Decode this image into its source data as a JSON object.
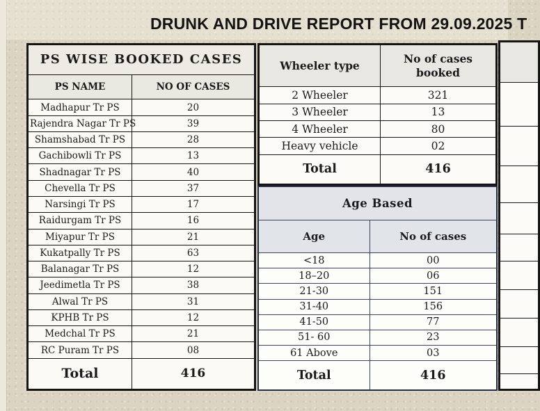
{
  "title": "DRUNK AND DRIVE REPORT FROM 29.09.2025 T",
  "ps_table": {
    "title": "PS WISE BOOKED CASES",
    "columns": [
      "PS NAME",
      "NO OF CASES"
    ],
    "rows": [
      [
        "Madhapur Tr PS",
        "20"
      ],
      [
        "Rajendra Nagar Tr PS",
        "39"
      ],
      [
        "Shamshabad Tr PS",
        "28"
      ],
      [
        "Gachibowli Tr PS",
        "13"
      ],
      [
        "Shadnagar Tr PS",
        "40"
      ],
      [
        "Chevella Tr PS",
        "37"
      ],
      [
        "Narsingi Tr PS",
        "17"
      ],
      [
        "Raidurgam Tr PS",
        "16"
      ],
      [
        "Miyapur Tr PS",
        "21"
      ],
      [
        "Kukatpally Tr PS",
        "63"
      ],
      [
        "Balanagar Tr PS",
        "12"
      ],
      [
        "Jeedimetla Tr PS",
        "38"
      ],
      [
        "Alwal Tr PS",
        "31"
      ],
      [
        "KPHB Tr PS",
        "12"
      ],
      [
        "Medchal Tr PS",
        "21"
      ],
      [
        "RC Puram Tr PS",
        "08"
      ]
    ],
    "total_label": "Total",
    "total_value": "416"
  },
  "wheeler_table": {
    "columns": [
      "Wheeler type",
      "No of cases booked"
    ],
    "rows": [
      [
        "2 Wheeler",
        "321"
      ],
      [
        "3 Wheeler",
        "13"
      ],
      [
        "4 Wheeler",
        "80"
      ],
      [
        "Heavy vehicle",
        "02"
      ]
    ],
    "total_label": "Total",
    "total_value": "416"
  },
  "age_table": {
    "title": "Age Based",
    "columns": [
      "Age",
      "No of cases"
    ],
    "rows": [
      [
        "<18",
        "00"
      ],
      [
        "18–20",
        "06"
      ],
      [
        "21-30",
        "151"
      ],
      [
        "31-40",
        "156"
      ],
      [
        "41-50",
        "77"
      ],
      [
        "51- 60",
        "23"
      ],
      [
        "61 Above",
        "03"
      ]
    ],
    "total_label": "Total",
    "total_value": "416"
  },
  "colors": {
    "page_background": "#dbd4c2",
    "cell_background": "#fbfaf5",
    "header_background": "#e8e7e1",
    "age_header_background": "#e2e4e9",
    "black_border": "#141414",
    "age_border": "#212e46",
    "age_divider": "#5b6f9b",
    "text": "#1a1a1a"
  }
}
